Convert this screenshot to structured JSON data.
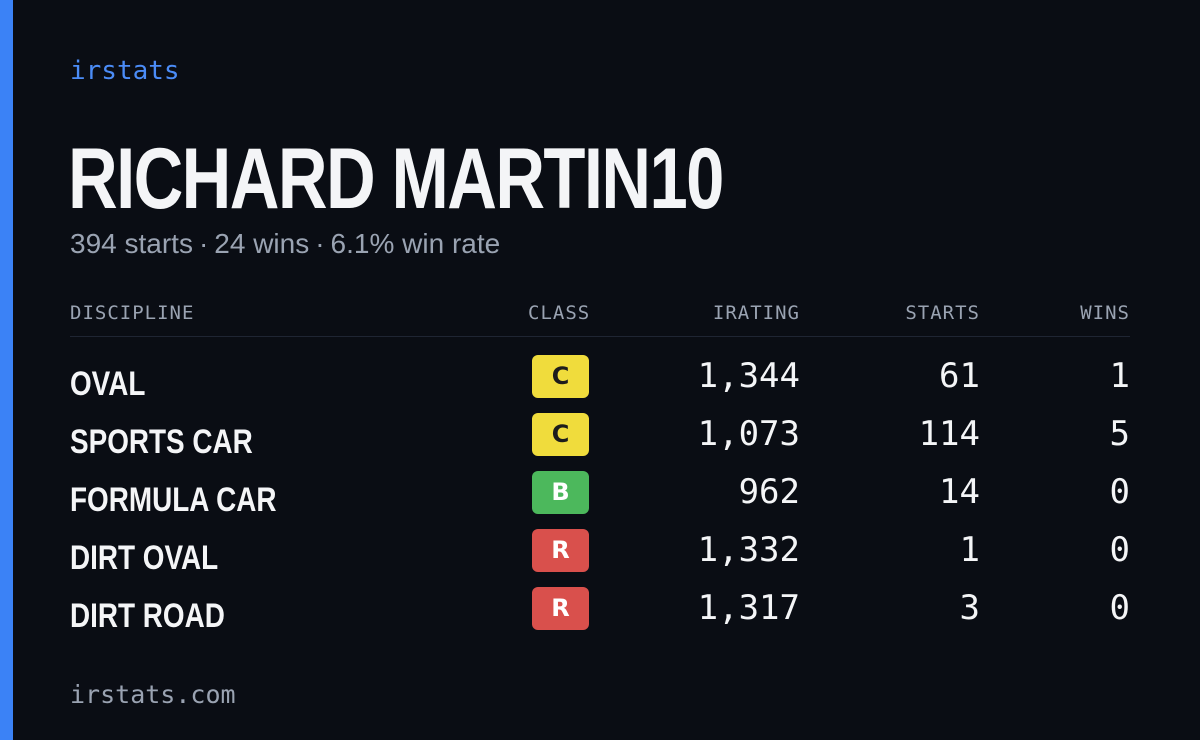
{
  "brand": "irstats",
  "driver_name": "RICHARD MARTIN10",
  "summary": {
    "starts": "394 starts",
    "wins": "24 wins",
    "win_rate": "6.1% win rate",
    "separator": "·"
  },
  "table": {
    "headers": {
      "discipline": "DISCIPLINE",
      "class": "CLASS",
      "irating": "IRATING",
      "starts": "STARTS",
      "wins": "WINS"
    },
    "rows": [
      {
        "discipline": "OVAL",
        "class": "C",
        "irating": "1,344",
        "starts": "61",
        "wins": "1"
      },
      {
        "discipline": "SPORTS CAR",
        "class": "C",
        "irating": "1,073",
        "starts": "114",
        "wins": "5"
      },
      {
        "discipline": "FORMULA CAR",
        "class": "B",
        "irating": "962",
        "starts": "14",
        "wins": "0"
      },
      {
        "discipline": "DIRT OVAL",
        "class": "R",
        "irating": "1,332",
        "starts": "1",
        "wins": "0"
      },
      {
        "discipline": "DIRT ROAD",
        "class": "R",
        "irating": "1,317",
        "starts": "3",
        "wins": "0"
      }
    ]
  },
  "class_colors": {
    "C": "#f0dc3c",
    "B": "#4cb85c",
    "R": "#d9504c"
  },
  "accent_color": "#3b82f6",
  "footer": "irstats.com"
}
